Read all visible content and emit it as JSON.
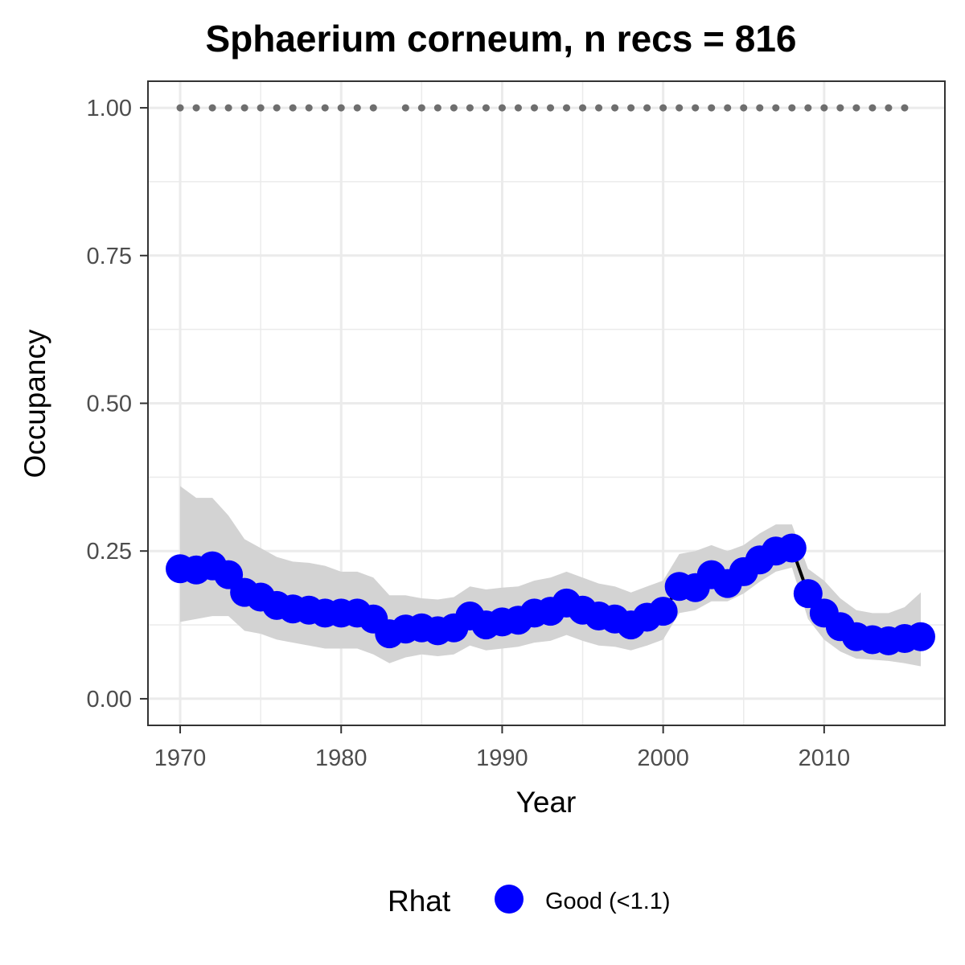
{
  "chart_data": {
    "type": "line",
    "title": "Sphaerium corneum, n recs = 816",
    "xlabel": "Year",
    "ylabel": "Occupancy",
    "xlim": [
      1968,
      2017.5
    ],
    "ylim": [
      -0.045,
      1.045
    ],
    "x_ticks": [
      1970,
      1980,
      1990,
      2000,
      2010
    ],
    "x_tick_labels": [
      "1970",
      "1980",
      "1990",
      "2000",
      "2010"
    ],
    "y_ticks": [
      0,
      0.25,
      0.5,
      0.75,
      1.0
    ],
    "y_tick_labels": [
      "0.00",
      "0.25",
      "0.50",
      "0.75",
      "1.00"
    ],
    "grid": true,
    "legend_position": "bottom",
    "legend": {
      "title": "Rhat",
      "entries": [
        {
          "label": "Good (<1.1)",
          "color": "#0000ff"
        }
      ]
    },
    "colors": {
      "points": "#0000ff",
      "line": "#000000",
      "ribbon": "#d3d3d3",
      "record_dots": "#6e6e6e",
      "grid": "#ebebeb",
      "panel_border": "#333333"
    },
    "series": [
      {
        "x": [
          1970,
          1971,
          1972,
          1973,
          1974,
          1975,
          1976,
          1977,
          1978,
          1979,
          1980,
          1981,
          1982,
          1983,
          1984,
          1985,
          1986,
          1987,
          1988,
          1989,
          1990,
          1991,
          1992,
          1993,
          1994,
          1995,
          1996,
          1997,
          1998,
          1999,
          2000,
          2001,
          2002,
          2003,
          2004,
          2005,
          2006,
          2007,
          2008,
          2009,
          2010,
          2011,
          2012,
          2013,
          2014,
          2015,
          2016
        ],
        "values": [
          0.22,
          0.218,
          0.225,
          0.21,
          0.18,
          0.172,
          0.158,
          0.152,
          0.15,
          0.145,
          0.145,
          0.145,
          0.135,
          0.11,
          0.118,
          0.12,
          0.115,
          0.12,
          0.14,
          0.125,
          0.13,
          0.133,
          0.145,
          0.148,
          0.162,
          0.15,
          0.14,
          0.135,
          0.125,
          0.138,
          0.148,
          0.19,
          0.188,
          0.21,
          0.195,
          0.215,
          0.235,
          0.25,
          0.255,
          0.178,
          0.145,
          0.122,
          0.105,
          0.1,
          0.098,
          0.102,
          0.105
        ],
        "lower": [
          0.13,
          0.135,
          0.14,
          0.14,
          0.115,
          0.11,
          0.1,
          0.095,
          0.09,
          0.085,
          0.085,
          0.085,
          0.075,
          0.06,
          0.07,
          0.075,
          0.072,
          0.075,
          0.09,
          0.082,
          0.085,
          0.088,
          0.095,
          0.098,
          0.108,
          0.098,
          0.09,
          0.088,
          0.082,
          0.09,
          0.1,
          0.145,
          0.15,
          0.165,
          0.165,
          0.178,
          0.198,
          0.215,
          0.222,
          0.135,
          0.1,
          0.08,
          0.068,
          0.066,
          0.064,
          0.06,
          0.055
        ],
        "upper": [
          0.36,
          0.34,
          0.34,
          0.31,
          0.27,
          0.255,
          0.24,
          0.232,
          0.23,
          0.225,
          0.215,
          0.215,
          0.205,
          0.175,
          0.175,
          0.17,
          0.168,
          0.172,
          0.19,
          0.185,
          0.188,
          0.19,
          0.2,
          0.205,
          0.215,
          0.205,
          0.195,
          0.19,
          0.18,
          0.19,
          0.2,
          0.245,
          0.25,
          0.26,
          0.25,
          0.26,
          0.28,
          0.295,
          0.295,
          0.22,
          0.2,
          0.17,
          0.15,
          0.145,
          0.145,
          0.155,
          0.18
        ]
      }
    ],
    "record_years": [
      1970,
      1971,
      1972,
      1973,
      1974,
      1975,
      1976,
      1977,
      1978,
      1979,
      1980,
      1981,
      1982,
      1984,
      1985,
      1986,
      1987,
      1988,
      1989,
      1990,
      1991,
      1992,
      1993,
      1994,
      1995,
      1996,
      1997,
      1998,
      1999,
      2000,
      2001,
      2002,
      2003,
      2004,
      2005,
      2006,
      2007,
      2008,
      2009,
      2010,
      2011,
      2012,
      2013,
      2014,
      2015
    ],
    "record_value": 1.0
  }
}
